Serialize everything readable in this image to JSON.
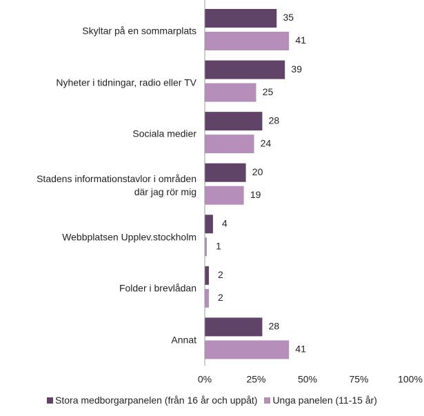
{
  "chart_data": {
    "type": "bar",
    "orientation": "horizontal",
    "categories": [
      "Skyltar på en sommarplats",
      "Nyheter i tidningar, radio eller TV",
      "Sociala medier",
      "Stadens informationstavlor i områden\ndär jag rör mig",
      "Webbplatsen Upplev.stockholm",
      "Folder i brevlådan",
      "Annat"
    ],
    "series": [
      {
        "name": "Stora medborgarpanelen (från 16 år och uppåt)",
        "color": "#5f4468",
        "values": [
          35,
          39,
          28,
          20,
          4,
          2,
          28
        ]
      },
      {
        "name": "Unga panelen (11-15 år)",
        "color": "#b58fba",
        "values": [
          41,
          25,
          24,
          19,
          1,
          2,
          41
        ]
      }
    ],
    "xlim": [
      0,
      100
    ],
    "xticks": [
      {
        "value": 0,
        "label": "0%"
      },
      {
        "value": 25,
        "label": "25%"
      },
      {
        "value": 50,
        "label": "50%"
      },
      {
        "value": 75,
        "label": "75%"
      },
      {
        "value": 100,
        "label": "100%"
      }
    ],
    "legend": "bottom"
  }
}
